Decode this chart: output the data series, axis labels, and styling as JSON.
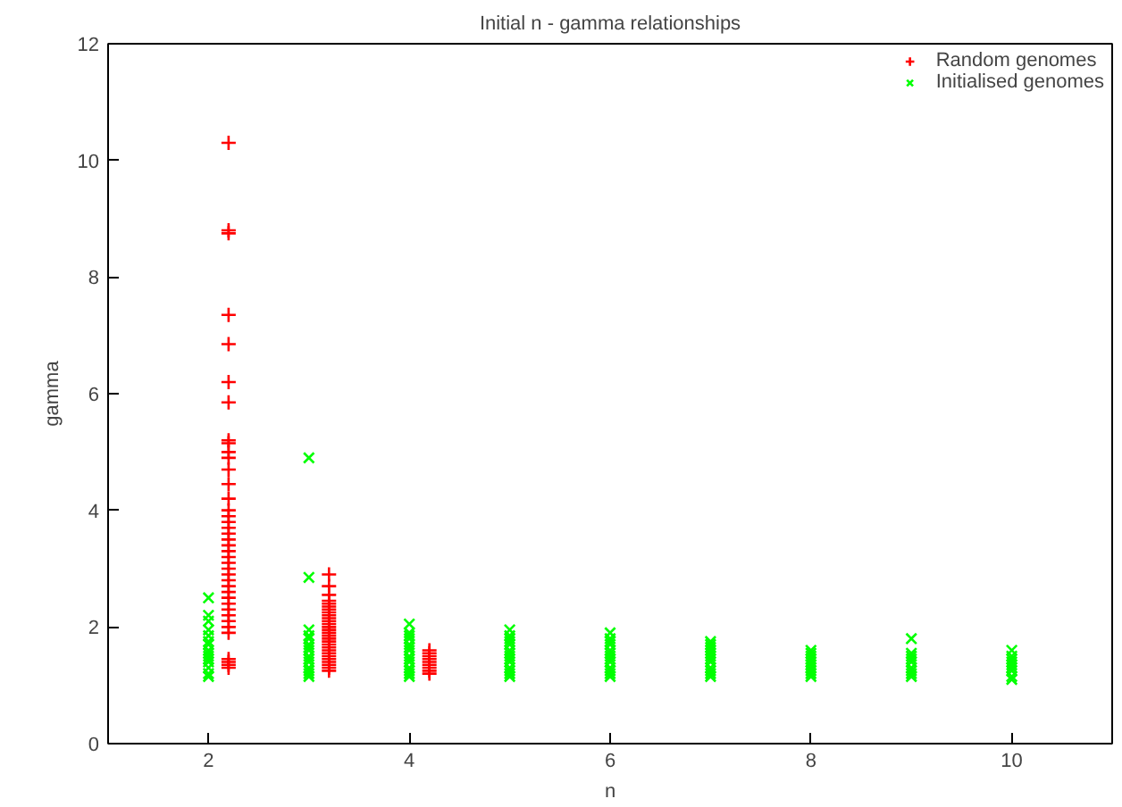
{
  "chart_data": {
    "type": "scatter",
    "title": "Initial n - gamma relationships",
    "xlabel": "n",
    "ylabel": "gamma",
    "xlim": [
      1,
      11
    ],
    "ylim": [
      0,
      12
    ],
    "xticks": [
      2,
      4,
      6,
      8,
      10
    ],
    "yticks": [
      0,
      2,
      4,
      6,
      8,
      10,
      12
    ],
    "grid": false,
    "legend": "top right",
    "series": [
      {
        "name": "Random genomes",
        "color": "#ff0000",
        "marker": "cross",
        "x": [
          2.2,
          2.2,
          2.2,
          2.2,
          2.2,
          2.2,
          2.2,
          2.2,
          2.2,
          2.2,
          2.2,
          2.2,
          2.2,
          2.2,
          2.2,
          2.2,
          2.2,
          2.2,
          2.2,
          2.2,
          2.2,
          2.2,
          2.2,
          2.2,
          2.2,
          2.2,
          2.2,
          2.2,
          2.2,
          2.2,
          2.2,
          2.2,
          2.2,
          2.2,
          2.2,
          2.2,
          2.2,
          2.2,
          2.2,
          2.2,
          3.2,
          3.2,
          3.2,
          3.2,
          3.2,
          3.2,
          3.2,
          3.2,
          3.2,
          3.2,
          3.2,
          3.2,
          3.2,
          3.2,
          3.2,
          3.2,
          3.2,
          3.2,
          3.2,
          3.2,
          3.2,
          3.2,
          3.2,
          3.2,
          3.2,
          3.2,
          3.2,
          3.2,
          4.2,
          4.2,
          4.2,
          4.2,
          4.2,
          4.2,
          4.2,
          4.2,
          4.2
        ],
        "values": [
          10.3,
          8.8,
          8.75,
          7.35,
          6.85,
          6.2,
          5.85,
          5.2,
          5.15,
          5.0,
          4.9,
          4.7,
          4.45,
          4.2,
          4.0,
          3.9,
          3.8,
          3.7,
          3.6,
          3.5,
          3.4,
          3.3,
          3.2,
          3.1,
          3.0,
          2.9,
          2.8,
          2.7,
          2.6,
          2.5,
          2.4,
          2.3,
          2.2,
          2.1,
          2.0,
          1.9,
          1.45,
          1.4,
          1.35,
          1.3,
          2.9,
          2.7,
          2.55,
          2.4,
          2.3,
          2.2,
          2.1,
          2.0,
          1.95,
          1.9,
          1.85,
          1.8,
          1.75,
          1.7,
          1.65,
          1.6,
          1.55,
          1.5,
          1.45,
          1.4,
          1.35,
          1.3,
          1.25,
          2.45,
          2.35,
          2.25,
          2.15,
          2.05,
          1.6,
          1.55,
          1.5,
          1.45,
          1.4,
          1.35,
          1.3,
          1.25,
          1.2
        ]
      },
      {
        "name": "Initialised genomes",
        "color": "#00ff00",
        "marker": "x",
        "x": [
          2,
          2,
          2,
          2,
          2,
          2,
          2,
          2,
          2,
          2,
          2,
          2,
          2,
          2,
          2,
          3,
          3,
          3,
          3,
          3,
          3,
          3,
          3,
          3,
          3,
          3,
          3,
          3,
          3,
          3,
          4,
          4,
          4,
          4,
          4,
          4,
          4,
          4,
          4,
          4,
          4,
          4,
          4,
          4,
          5,
          5,
          5,
          5,
          5,
          5,
          5,
          5,
          5,
          5,
          5,
          5,
          5,
          5,
          6,
          6,
          6,
          6,
          6,
          6,
          6,
          6,
          6,
          6,
          6,
          6,
          6,
          7,
          7,
          7,
          7,
          7,
          7,
          7,
          7,
          7,
          7,
          7,
          7,
          8,
          8,
          8,
          8,
          8,
          8,
          8,
          8,
          8,
          8,
          9,
          9,
          9,
          9,
          9,
          9,
          9,
          9,
          9,
          10,
          10,
          10,
          10,
          10,
          10,
          10,
          10,
          10
        ],
        "values": [
          2.5,
          2.2,
          2.1,
          1.95,
          1.85,
          1.75,
          1.7,
          1.6,
          1.55,
          1.5,
          1.45,
          1.4,
          1.3,
          1.2,
          1.15,
          4.9,
          2.85,
          1.95,
          1.85,
          1.8,
          1.7,
          1.65,
          1.6,
          1.5,
          1.45,
          1.4,
          1.3,
          1.25,
          1.2,
          1.15,
          2.05,
          1.9,
          1.85,
          1.8,
          1.7,
          1.65,
          1.6,
          1.5,
          1.45,
          1.4,
          1.3,
          1.25,
          1.2,
          1.15,
          1.95,
          1.85,
          1.8,
          1.75,
          1.7,
          1.6,
          1.55,
          1.5,
          1.45,
          1.4,
          1.3,
          1.25,
          1.2,
          1.15,
          1.9,
          1.8,
          1.75,
          1.7,
          1.6,
          1.55,
          1.5,
          1.45,
          1.4,
          1.3,
          1.25,
          1.2,
          1.15,
          1.75,
          1.7,
          1.65,
          1.6,
          1.55,
          1.5,
          1.45,
          1.4,
          1.3,
          1.25,
          1.2,
          1.15,
          1.6,
          1.55,
          1.5,
          1.45,
          1.4,
          1.35,
          1.3,
          1.25,
          1.2,
          1.15,
          1.8,
          1.55,
          1.5,
          1.45,
          1.4,
          1.3,
          1.25,
          1.2,
          1.15,
          1.6,
          1.5,
          1.45,
          1.4,
          1.35,
          1.3,
          1.25,
          1.15,
          1.1
        ]
      }
    ]
  }
}
